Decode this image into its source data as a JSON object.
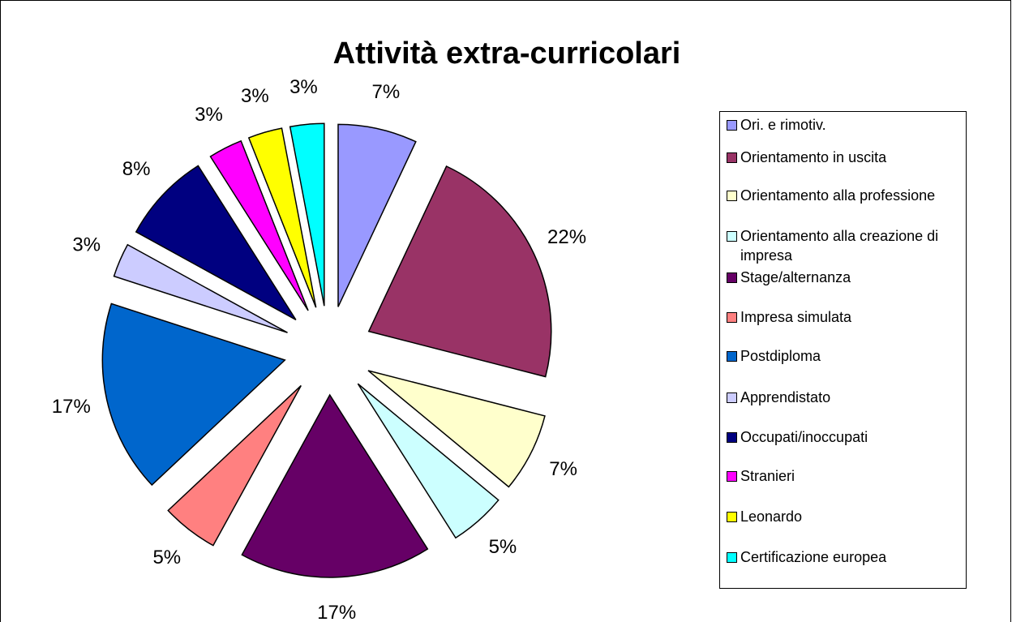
{
  "chart_data": {
    "type": "pie",
    "title": "Attività extra-curricolari",
    "categories": [
      "Ori. e rimotiv.",
      "Orientamento in uscita",
      "Orientamento alla professione",
      "Orientamento alla creazione di impresa",
      "Stage/alternanza",
      "Impresa simulata",
      "Postdiploma",
      "Apprendistato",
      "Occupati/inoccupati",
      "Stranieri",
      "Leonardo",
      "Certificazione europea"
    ],
    "values": [
      7,
      22,
      7,
      5,
      17,
      5,
      17,
      3,
      8,
      3,
      3,
      3
    ],
    "value_labels": [
      "7%",
      "22%",
      "7%",
      "5%",
      "17%",
      "5%",
      "17%",
      "3%",
      "8%",
      "3%",
      "3%",
      "3%"
    ],
    "colors": [
      "#9999ff",
      "#993366",
      "#ffffcc",
      "#ccffff",
      "#660066",
      "#ff8080",
      "#0066cc",
      "#ccccff",
      "#000080",
      "#ff00ff",
      "#ffff00",
      "#00ffff"
    ],
    "legend": "right"
  }
}
